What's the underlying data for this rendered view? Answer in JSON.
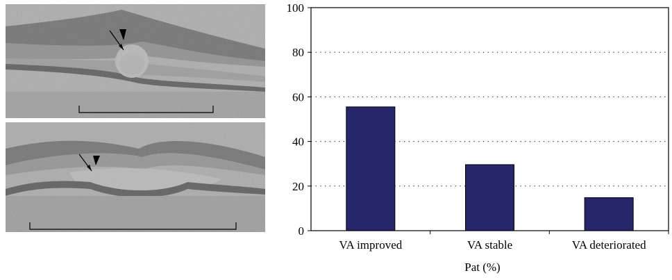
{
  "chart_data": {
    "type": "bar",
    "categories": [
      "VA improved",
      "VA stable",
      "VA deteriorated"
    ],
    "values": [
      55.5,
      29.6,
      14.8
    ],
    "xlabel": "Pat (%)",
    "ylabel": "",
    "ylim": [
      0,
      100
    ],
    "yticks": [
      0,
      20,
      40,
      60,
      80,
      100
    ],
    "grid": "dotted horizontal",
    "bar_color": "#26266b"
  },
  "oct_images": {
    "description_icons": [
      "arrow-icon",
      "arrowhead-icon"
    ],
    "colors": {
      "tissue_dark": "#3a3a3a",
      "tissue_light": "#c8c8c8"
    }
  }
}
